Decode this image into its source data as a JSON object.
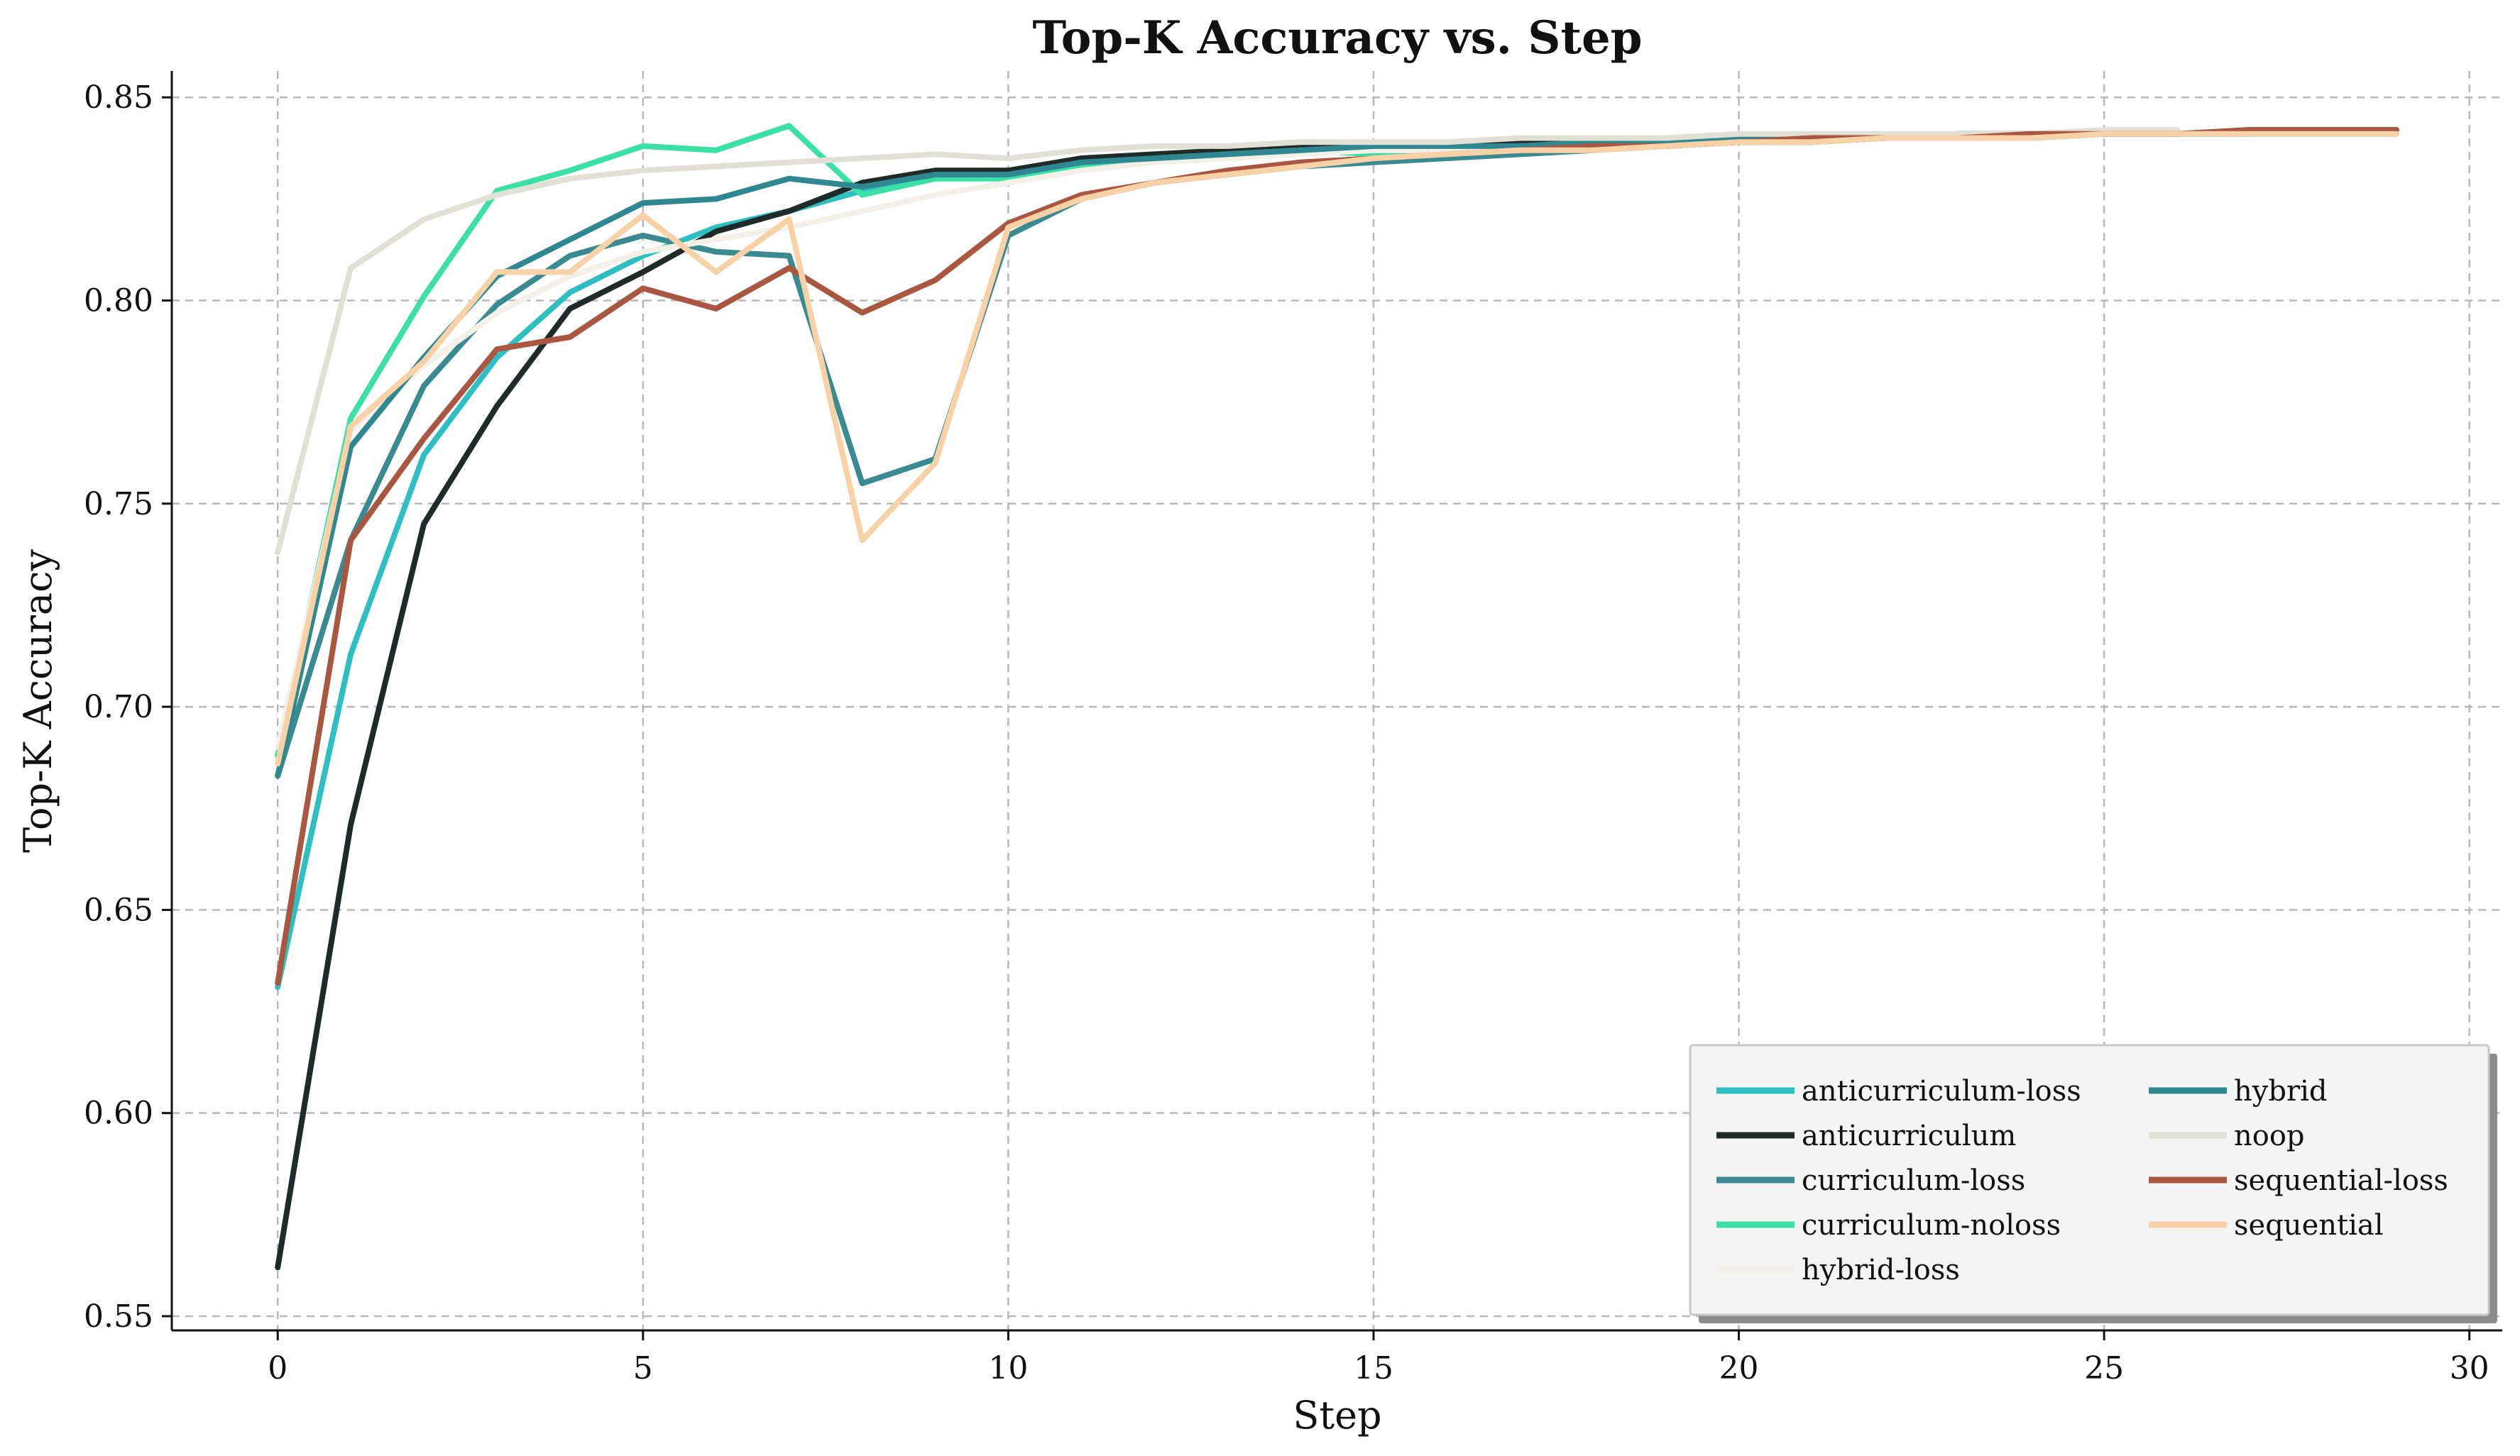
{
  "chart_data": {
    "type": "line",
    "title": "Top-K Accuracy vs. Step",
    "xlabel": "Step",
    "ylabel": "Top-K Accuracy",
    "xlim": [
      -1.45,
      30.45
    ],
    "ylim": [
      0.5465,
      0.8565
    ],
    "xticks": [
      0,
      5,
      10,
      15,
      20,
      25,
      30
    ],
    "yticks": [
      0.55,
      0.6,
      0.65,
      0.7,
      0.75,
      0.8,
      0.85
    ],
    "ytick_labels": [
      "0.55",
      "0.60",
      "0.65",
      "0.70",
      "0.75",
      "0.80",
      "0.85"
    ],
    "grid": true,
    "legend_position": "lower-right",
    "series": [
      {
        "name": "anticurriculum-loss",
        "color": "#2ebfc2",
        "x": [
          0,
          1,
          2,
          3,
          4,
          5,
          6,
          7,
          8,
          9,
          10,
          11,
          12,
          13,
          14,
          15,
          16,
          17,
          18,
          19,
          20,
          21,
          22,
          23,
          24,
          25,
          26,
          27,
          28,
          29
        ],
        "values": [
          0.631,
          0.713,
          0.762,
          0.786,
          0.802,
          0.811,
          0.818,
          0.822,
          0.827,
          0.83,
          0.831,
          0.834,
          0.835,
          0.836,
          0.837,
          0.837,
          0.837,
          0.838,
          0.838,
          0.838,
          0.839,
          0.839,
          0.84,
          0.84,
          0.84,
          0.841,
          0.841,
          0.841,
          0.841,
          0.841
        ]
      },
      {
        "name": "anticurriculum",
        "color": "#1f2b28",
        "x": [
          0,
          1,
          2,
          3,
          4,
          5,
          6,
          7,
          8,
          9,
          10,
          11,
          12,
          13,
          14,
          15,
          16,
          17,
          18,
          19,
          20,
          21,
          22,
          23,
          24,
          25,
          26,
          27,
          28,
          29
        ],
        "values": [
          0.562,
          0.671,
          0.745,
          0.774,
          0.798,
          0.807,
          0.817,
          0.822,
          0.829,
          0.832,
          0.832,
          0.835,
          0.836,
          0.837,
          0.838,
          0.838,
          0.838,
          0.839,
          0.839,
          0.839,
          0.84,
          0.84,
          0.84,
          0.841,
          0.841,
          0.841,
          0.841,
          0.841,
          0.842,
          0.842
        ]
      },
      {
        "name": "curriculum-loss",
        "color": "#3a8a91",
        "x": [
          0,
          1,
          2,
          3,
          4,
          5,
          6,
          7,
          8,
          9,
          10,
          11,
          12,
          13,
          14,
          15,
          16,
          17,
          18,
          19,
          20,
          21,
          22,
          23,
          24,
          25,
          26,
          27,
          28,
          29
        ],
        "values": [
          0.683,
          0.741,
          0.779,
          0.799,
          0.811,
          0.816,
          0.812,
          0.811,
          0.755,
          0.761,
          0.816,
          0.825,
          0.829,
          0.831,
          0.833,
          0.834,
          0.835,
          0.836,
          0.837,
          0.838,
          0.839,
          0.839,
          0.84,
          0.84,
          0.841,
          0.841,
          0.841,
          0.841,
          0.842,
          0.842
        ]
      },
      {
        "name": "curriculum-noloss",
        "color": "#3be0a6",
        "x": [
          0,
          1,
          2,
          3,
          4,
          5,
          6,
          7,
          8,
          9,
          10,
          11,
          12,
          13,
          14,
          15,
          16,
          17,
          18,
          19,
          20,
          21,
          22,
          23,
          24,
          25,
          26,
          27,
          28,
          29
        ],
        "values": [
          0.688,
          0.771,
          0.801,
          0.827,
          0.832,
          0.838,
          0.837,
          0.843,
          0.826,
          0.83,
          0.83,
          0.833,
          0.835,
          0.836,
          0.837,
          0.836,
          0.837,
          0.838,
          0.838,
          0.838,
          0.839,
          0.839,
          0.84,
          0.84,
          0.84,
          0.841,
          0.841,
          0.841,
          0.841,
          0.841
        ]
      },
      {
        "name": "hybrid-loss",
        "color": "#f3f0e7",
        "x": [
          0,
          1,
          2,
          3,
          4,
          5,
          6,
          7,
          8,
          9,
          10,
          11,
          12,
          13,
          14,
          15,
          16,
          17,
          18,
          19,
          20,
          21,
          22,
          23,
          24,
          25,
          26,
          27,
          28,
          29
        ],
        "values": [
          0.69,
          0.768,
          0.784,
          0.797,
          0.806,
          0.812,
          0.815,
          0.818,
          0.822,
          0.826,
          0.829,
          0.832,
          0.834,
          0.835,
          0.836,
          0.837,
          0.837,
          0.838,
          0.838,
          0.839,
          0.839,
          0.84,
          0.84,
          0.84,
          0.841,
          0.841,
          0.841,
          0.841,
          0.841,
          0.841
        ]
      },
      {
        "name": "hybrid",
        "color": "#2f8791",
        "x": [
          0,
          1,
          2,
          3,
          4,
          5,
          6,
          7,
          8,
          9,
          10,
          11,
          12,
          13,
          14,
          15,
          16,
          17,
          18,
          19,
          20,
          21,
          22,
          23,
          24,
          25,
          26,
          27,
          28,
          29
        ],
        "values": [
          0.683,
          0.764,
          0.786,
          0.806,
          0.815,
          0.824,
          0.825,
          0.83,
          0.828,
          0.831,
          0.831,
          0.834,
          0.835,
          0.836,
          0.837,
          0.838,
          0.838,
          0.838,
          0.839,
          0.839,
          0.84,
          0.84,
          0.84,
          0.841,
          0.841,
          0.841,
          0.841,
          0.842,
          0.842,
          0.842
        ]
      },
      {
        "name": "noop",
        "color": "#e1e0d4",
        "x": [
          0,
          1,
          2,
          3,
          4,
          5,
          6,
          7,
          8,
          9,
          10,
          11,
          12,
          13,
          14,
          15,
          16,
          17,
          18,
          19,
          20,
          21,
          22,
          23,
          24,
          25,
          26
        ],
        "values": [
          0.738,
          0.808,
          0.82,
          0.826,
          0.83,
          0.832,
          0.833,
          0.834,
          0.835,
          0.836,
          0.835,
          0.837,
          0.838,
          0.838,
          0.839,
          0.839,
          0.839,
          0.84,
          0.84,
          0.84,
          0.841,
          0.841,
          0.841,
          0.841,
          0.841,
          0.842,
          0.842
        ]
      },
      {
        "name": "sequential-loss",
        "color": "#a95740",
        "x": [
          0,
          1,
          2,
          3,
          4,
          5,
          6,
          7,
          8,
          9,
          10,
          11,
          12,
          13,
          14,
          15,
          16,
          17,
          18,
          19,
          20,
          21,
          22,
          23,
          24,
          25,
          26,
          27,
          28,
          29
        ],
        "values": [
          0.632,
          0.741,
          0.766,
          0.788,
          0.791,
          0.803,
          0.798,
          0.808,
          0.797,
          0.805,
          0.819,
          0.826,
          0.829,
          0.832,
          0.834,
          0.835,
          0.836,
          0.837,
          0.838,
          0.838,
          0.839,
          0.84,
          0.84,
          0.84,
          0.841,
          0.841,
          0.841,
          0.842,
          0.842,
          0.842
        ]
      },
      {
        "name": "sequential",
        "color": "#f8d1a6",
        "x": [
          0,
          1,
          2,
          3,
          4,
          5,
          6,
          7,
          8,
          9,
          10,
          11,
          12,
          13,
          14,
          15,
          16,
          17,
          18,
          19,
          20,
          21,
          22,
          23,
          24,
          25,
          26,
          27,
          28,
          29
        ],
        "values": [
          0.686,
          0.769,
          0.785,
          0.807,
          0.807,
          0.821,
          0.807,
          0.82,
          0.741,
          0.76,
          0.818,
          0.825,
          0.829,
          0.831,
          0.833,
          0.835,
          0.836,
          0.837,
          0.837,
          0.838,
          0.839,
          0.839,
          0.84,
          0.84,
          0.84,
          0.841,
          0.841,
          0.841,
          0.841,
          0.841
        ]
      }
    ]
  }
}
